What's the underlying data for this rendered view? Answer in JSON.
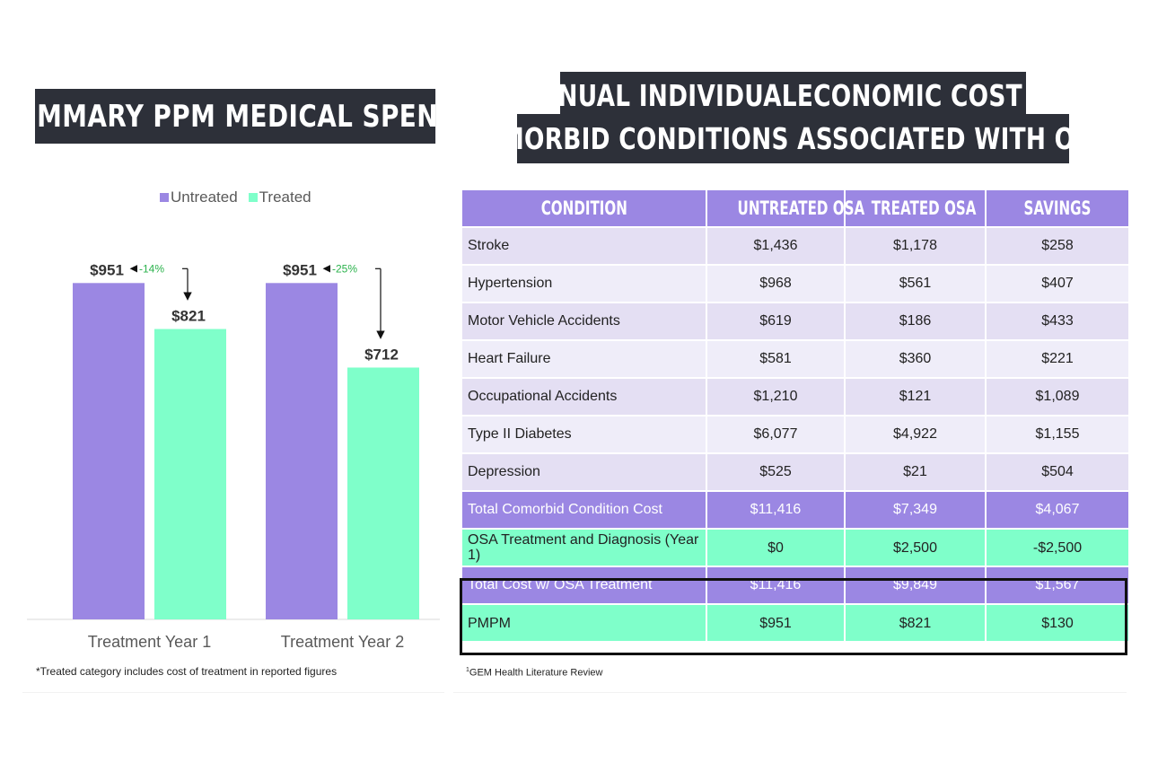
{
  "left_panel": {
    "title": "SUMMARY PPM MEDICAL SPEND*",
    "footnote": "*Treated category includes cost of treatment in reported figures"
  },
  "right_panel": {
    "title_line1": "ANNUAL INDIVIDUALECONOMIC COST OF",
    "title_line2": "COMORBID CONDITIONS ASSOCIATED WITH OSA",
    "title_sup": "1",
    "source_sup": "1",
    "source": "GEM Health Literature Review"
  },
  "colors": {
    "untreated": "#9b87e3",
    "treated": "#7fffca",
    "title_bg": "#2d3039",
    "decrease_label": "#2bb24c"
  },
  "chart_data": {
    "type": "bar",
    "categories": [
      "Treatment Year 1",
      "Treatment Year 2"
    ],
    "series": [
      {
        "name": "Untreated",
        "values": [
          951,
          951
        ],
        "labels": [
          "$951",
          "$951"
        ]
      },
      {
        "name": "Treated",
        "values": [
          821,
          712
        ],
        "labels": [
          "$821",
          "$712"
        ]
      }
    ],
    "change_labels": [
      "-14%",
      "-25%"
    ],
    "legend": [
      "Untreated",
      "Treated"
    ],
    "legend_position": "top-center",
    "ylim": [
      0,
      1000
    ],
    "title": "",
    "xlabel": "",
    "ylabel": "",
    "grid": false
  },
  "table": {
    "headers": [
      "CONDITION",
      "UNTREATED OSA",
      "TREATED OSA",
      "SAVINGS"
    ],
    "rows": [
      {
        "cells": [
          "Stroke",
          "$1,436",
          "$1,178",
          "$258"
        ],
        "style": "row-a"
      },
      {
        "cells": [
          "Hypertension",
          "$968",
          "$561",
          "$407"
        ],
        "style": "row-b"
      },
      {
        "cells": [
          "Motor Vehicle Accidents",
          "$619",
          "$186",
          "$433"
        ],
        "style": "row-a"
      },
      {
        "cells": [
          "Heart Failure",
          "$581",
          "$360",
          "$221"
        ],
        "style": "row-b"
      },
      {
        "cells": [
          "Occupational Accidents",
          "$1,210",
          "$121",
          "$1,089"
        ],
        "style": "row-a"
      },
      {
        "cells": [
          "Type II Diabetes",
          "$6,077",
          "$4,922",
          "$1,155"
        ],
        "style": "row-b"
      },
      {
        "cells": [
          "Depression",
          "$525",
          "$21",
          "$504"
        ],
        "style": "row-a"
      },
      {
        "cells": [
          "Total Comorbid Condition Cost",
          "$11,416",
          "$7,349",
          "$4,067"
        ],
        "style": "row-purple"
      },
      {
        "cells": [
          "OSA Treatment and Diagnosis (Year 1)",
          "$0",
          "$2,500",
          "-$2,500"
        ],
        "style": "row-green"
      },
      {
        "cells": [
          "Total Cost w/ OSA Treatment",
          "$11,416",
          "$9,849",
          "$1,567"
        ],
        "style": "row-purple"
      },
      {
        "cells": [
          "PMPM",
          "$951",
          "$821",
          "$130"
        ],
        "style": "row-green"
      }
    ]
  }
}
